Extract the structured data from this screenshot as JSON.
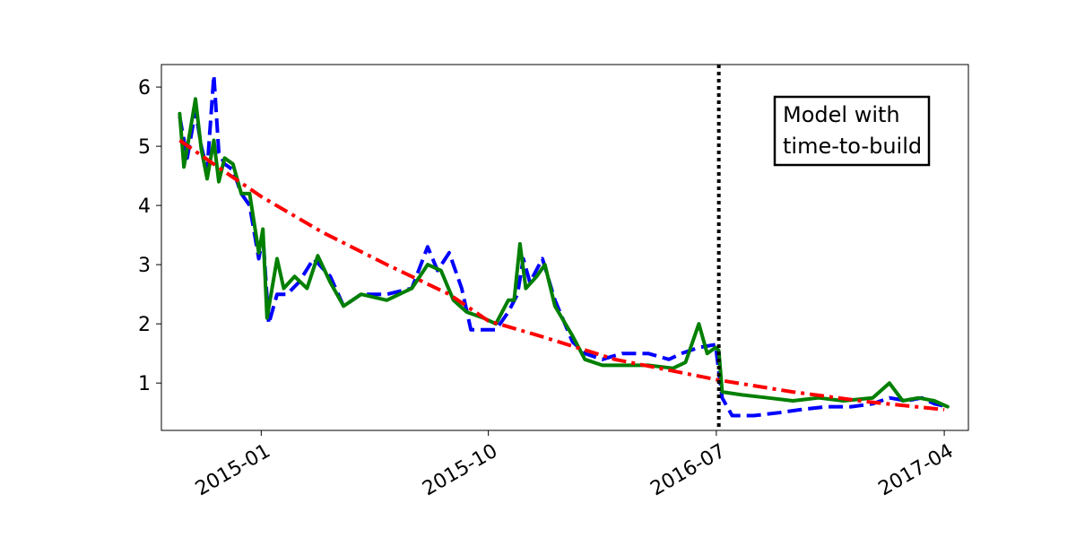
{
  "chart_data": {
    "type": "line",
    "title": "",
    "xlabel": "",
    "ylabel": "",
    "x_ticks": [
      {
        "label": "2015-01",
        "date": "2015-01-01"
      },
      {
        "label": "2015-10",
        "date": "2015-10-01"
      },
      {
        "label": "2016-07",
        "date": "2016-07-01"
      },
      {
        "label": "2017-04",
        "date": "2017-04-01"
      }
    ],
    "y_ticks": [
      1,
      2,
      3,
      4,
      5,
      6
    ],
    "xlim": [
      "2014-09-03",
      "2017-04-30"
    ],
    "ylim": [
      0.2,
      6.38
    ],
    "grid": false,
    "legend": "none",
    "vertical_line": {
      "date": "2016-07-04",
      "style": "dotted",
      "color": "#000000"
    },
    "annotation": {
      "lines": [
        "Model with",
        "time-to-build"
      ],
      "placement": "upper-right"
    },
    "series": [
      {
        "style": "dashed",
        "color": "#0000ff",
        "points": [
          [
            "2014-09-25",
            5.5
          ],
          [
            "2014-10-04",
            4.8
          ],
          [
            "2014-10-14",
            5.6
          ],
          [
            "2014-10-21",
            5.0
          ],
          [
            "2014-10-28",
            4.6
          ],
          [
            "2014-11-05",
            6.2
          ],
          [
            "2014-11-11",
            4.9
          ],
          [
            "2014-11-18",
            4.7
          ],
          [
            "2014-11-28",
            4.6
          ],
          [
            "2014-12-08",
            4.2
          ],
          [
            "2014-12-18",
            4.0
          ],
          [
            "2014-12-29",
            3.1
          ],
          [
            "2015-01-03",
            3.5
          ],
          [
            "2015-01-10",
            2.0
          ],
          [
            "2015-01-20",
            2.5
          ],
          [
            "2015-02-01",
            2.5
          ],
          [
            "2015-02-15",
            2.7
          ],
          [
            "2015-03-05",
            3.1
          ],
          [
            "2015-03-25",
            2.8
          ],
          [
            "2015-04-10",
            2.3
          ],
          [
            "2015-05-01",
            2.5
          ],
          [
            "2015-06-01",
            2.5
          ],
          [
            "2015-07-01",
            2.6
          ],
          [
            "2015-07-20",
            3.3
          ],
          [
            "2015-08-01",
            2.9
          ],
          [
            "2015-08-15",
            3.2
          ],
          [
            "2015-08-30",
            2.6
          ],
          [
            "2015-09-10",
            1.9
          ],
          [
            "2015-09-25",
            1.9
          ],
          [
            "2015-10-10",
            1.9
          ],
          [
            "2015-10-25",
            2.2
          ],
          [
            "2015-11-05",
            2.5
          ],
          [
            "2015-11-12",
            3.1
          ],
          [
            "2015-11-20",
            2.7
          ],
          [
            "2015-12-05",
            3.1
          ],
          [
            "2015-12-20",
            2.4
          ],
          [
            "2016-01-10",
            1.7
          ],
          [
            "2016-01-25",
            1.5
          ],
          [
            "2016-02-15",
            1.4
          ],
          [
            "2016-03-10",
            1.5
          ],
          [
            "2016-04-10",
            1.5
          ],
          [
            "2016-05-05",
            1.4
          ],
          [
            "2016-05-20",
            1.5
          ],
          [
            "2016-06-10",
            1.6
          ],
          [
            "2016-06-30",
            1.65
          ],
          [
            "2016-07-08",
            0.75
          ],
          [
            "2016-07-20",
            0.45
          ],
          [
            "2016-08-15",
            0.45
          ],
          [
            "2016-09-15",
            0.5
          ],
          [
            "2016-10-10",
            0.55
          ],
          [
            "2016-11-10",
            0.6
          ],
          [
            "2016-12-10",
            0.6
          ],
          [
            "2017-01-05",
            0.65
          ],
          [
            "2017-01-25",
            0.75
          ],
          [
            "2017-02-15",
            0.7
          ],
          [
            "2017-03-05",
            0.75
          ],
          [
            "2017-03-20",
            0.65
          ],
          [
            "2017-04-05",
            0.6
          ]
        ]
      },
      {
        "style": "solid",
        "color": "#007f00",
        "points": [
          [
            "2014-09-25",
            5.55
          ],
          [
            "2014-09-30",
            4.65
          ],
          [
            "2014-10-08",
            5.3
          ],
          [
            "2014-10-14",
            5.8
          ],
          [
            "2014-10-21",
            4.95
          ],
          [
            "2014-10-28",
            4.45
          ],
          [
            "2014-11-05",
            5.1
          ],
          [
            "2014-11-11",
            4.4
          ],
          [
            "2014-11-18",
            4.8
          ],
          [
            "2014-11-28",
            4.7
          ],
          [
            "2014-12-08",
            4.2
          ],
          [
            "2014-12-18",
            4.2
          ],
          [
            "2014-12-29",
            3.2
          ],
          [
            "2015-01-03",
            3.6
          ],
          [
            "2015-01-08",
            2.1
          ],
          [
            "2015-01-20",
            3.1
          ],
          [
            "2015-01-28",
            2.6
          ],
          [
            "2015-02-10",
            2.8
          ],
          [
            "2015-02-25",
            2.6
          ],
          [
            "2015-03-10",
            3.15
          ],
          [
            "2015-03-25",
            2.7
          ],
          [
            "2015-04-10",
            2.3
          ],
          [
            "2015-05-01",
            2.5
          ],
          [
            "2015-06-01",
            2.4
          ],
          [
            "2015-07-01",
            2.6
          ],
          [
            "2015-07-20",
            3.0
          ],
          [
            "2015-08-05",
            2.9
          ],
          [
            "2015-08-20",
            2.4
          ],
          [
            "2015-09-05",
            2.2
          ],
          [
            "2015-09-25",
            2.1
          ],
          [
            "2015-10-10",
            2.0
          ],
          [
            "2015-10-25",
            2.4
          ],
          [
            "2015-11-01",
            2.4
          ],
          [
            "2015-11-08",
            3.35
          ],
          [
            "2015-11-15",
            2.6
          ],
          [
            "2015-11-28",
            2.8
          ],
          [
            "2015-12-08",
            3.0
          ],
          [
            "2015-12-20",
            2.3
          ],
          [
            "2016-01-10",
            1.8
          ],
          [
            "2016-01-25",
            1.4
          ],
          [
            "2016-02-15",
            1.3
          ],
          [
            "2016-03-10",
            1.3
          ],
          [
            "2016-04-10",
            1.3
          ],
          [
            "2016-05-10",
            1.25
          ],
          [
            "2016-05-25",
            1.35
          ],
          [
            "2016-06-10",
            2.0
          ],
          [
            "2016-06-20",
            1.5
          ],
          [
            "2016-06-30",
            1.6
          ],
          [
            "2016-07-04",
            1.55
          ],
          [
            "2016-07-08",
            0.85
          ],
          [
            "2016-08-01",
            0.8
          ],
          [
            "2016-09-01",
            0.75
          ],
          [
            "2016-10-01",
            0.7
          ],
          [
            "2016-11-01",
            0.75
          ],
          [
            "2016-12-01",
            0.7
          ],
          [
            "2017-01-05",
            0.75
          ],
          [
            "2017-01-25",
            1.0
          ],
          [
            "2017-02-10",
            0.7
          ],
          [
            "2017-03-01",
            0.75
          ],
          [
            "2017-03-20",
            0.7
          ],
          [
            "2017-04-05",
            0.6
          ]
        ]
      },
      {
        "style": "dash-dot",
        "color": "#ff0000",
        "points": [
          [
            "2014-09-25",
            5.1
          ],
          [
            "2014-11-15",
            4.6
          ],
          [
            "2015-01-01",
            4.15
          ],
          [
            "2015-03-15",
            3.55
          ],
          [
            "2015-06-01",
            3.0
          ],
          [
            "2015-08-15",
            2.5
          ],
          [
            "2015-10-01",
            2.05
          ],
          [
            "2015-12-01",
            1.8
          ],
          [
            "2016-03-01",
            1.4
          ],
          [
            "2016-07-04",
            1.05
          ],
          [
            "2016-10-01",
            0.85
          ],
          [
            "2017-01-01",
            0.68
          ],
          [
            "2017-04-01",
            0.55
          ]
        ]
      }
    ]
  }
}
